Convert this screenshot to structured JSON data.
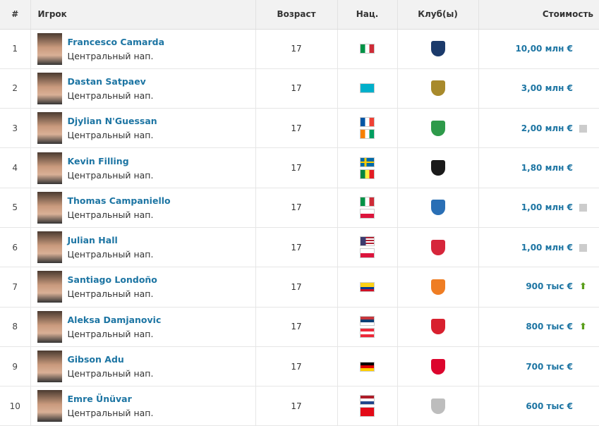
{
  "headers": {
    "num": "#",
    "player": "Игрок",
    "age": "Возраст",
    "nat": "Нац.",
    "club": "Клуб(ы)",
    "value": "Стоимость"
  },
  "flag_colors": {
    "italy": [
      "#009246",
      "#ffffff",
      "#ce2b37"
    ],
    "kazakhstan": [
      "#00afca",
      "#00afca",
      "#00afca"
    ],
    "france": [
      "#0055a4",
      "#ffffff",
      "#ef4135"
    ],
    "ivory-coast": [
      "#f77f00",
      "#ffffff",
      "#009e60"
    ],
    "sweden": [
      "#006aa7",
      "#fecc00",
      "#006aa7"
    ],
    "senegal": [
      "#00853f",
      "#fdef42",
      "#e31b23"
    ],
    "poland": [
      "#ffffff",
      "#ffffff",
      "#dc143c"
    ],
    "usa": [
      "#b22234",
      "#ffffff",
      "#3c3b6e"
    ],
    "colombia": [
      "#fcd116",
      "#003893",
      "#ce1126"
    ],
    "serbia": [
      "#c6363c",
      "#0c4076",
      "#ffffff"
    ],
    "austria": [
      "#ed2939",
      "#ffffff",
      "#ed2939"
    ],
    "germany": [
      "#000000",
      "#dd0000",
      "#ffce00"
    ],
    "netherlands": [
      "#ae1c28",
      "#ffffff",
      "#21468b"
    ],
    "turkey": [
      "#e30a17",
      "#e30a17",
      "#e30a17"
    ]
  },
  "rows": [
    {
      "num": "1",
      "name": "Francesco Camarda",
      "position": "Центральный нап.",
      "age": "17",
      "flags": [
        "italy"
      ],
      "club_color": "#1b3a6b",
      "value": "10,00 млн €",
      "trend": "none"
    },
    {
      "num": "2",
      "name": "Dastan Satpaev",
      "position": "Центральный нап.",
      "age": "17",
      "flags": [
        "kazakhstan"
      ],
      "club_color": "#a88a2c",
      "value": "3,00 млн €",
      "trend": "none"
    },
    {
      "num": "3",
      "name": "Djylian N'Guessan",
      "position": "Центральный нап.",
      "age": "17",
      "flags": [
        "france",
        "ivory-coast"
      ],
      "club_color": "#2e9a4a",
      "value": "2,00 млн €",
      "trend": "unchanged"
    },
    {
      "num": "4",
      "name": "Kevin Filling",
      "position": "Центральный нап.",
      "age": "17",
      "flags": [
        "sweden",
        "senegal"
      ],
      "club_color": "#1a1a1a",
      "value": "1,80 млн €",
      "trend": "none"
    },
    {
      "num": "5",
      "name": "Thomas Campaniello",
      "position": "Центральный нап.",
      "age": "17",
      "flags": [
        "italy",
        "poland"
      ],
      "club_color": "#2a6fb5",
      "value": "1,00 млн €",
      "trend": "unchanged"
    },
    {
      "num": "6",
      "name": "Julian Hall",
      "position": "Центральный нап.",
      "age": "17",
      "flags": [
        "usa",
        "poland"
      ],
      "club_color": "#d6263b",
      "value": "1,00 млн €",
      "trend": "unchanged"
    },
    {
      "num": "7",
      "name": "Santiago Londoño",
      "position": "Центральный нап.",
      "age": "17",
      "flags": [
        "colombia"
      ],
      "club_color": "#ef7d23",
      "value": "900 тыс €",
      "trend": "up"
    },
    {
      "num": "8",
      "name": "Aleksa Damjanovic",
      "position": "Центральный нап.",
      "age": "17",
      "flags": [
        "serbia",
        "austria"
      ],
      "club_color": "#d8202e",
      "value": "800 тыс €",
      "trend": "up"
    },
    {
      "num": "9",
      "name": "Gibson Adu",
      "position": "Центральный нап.",
      "age": "17",
      "flags": [
        "germany"
      ],
      "club_color": "#dc052d",
      "value": "700 тыс €",
      "trend": "none"
    },
    {
      "num": "10",
      "name": "Emre Ünüvar",
      "position": "Центральный нап.",
      "age": "17",
      "flags": [
        "netherlands",
        "turkey"
      ],
      "club_color": "#bdbdbd",
      "value": "600 тыс €",
      "trend": "none"
    }
  ]
}
